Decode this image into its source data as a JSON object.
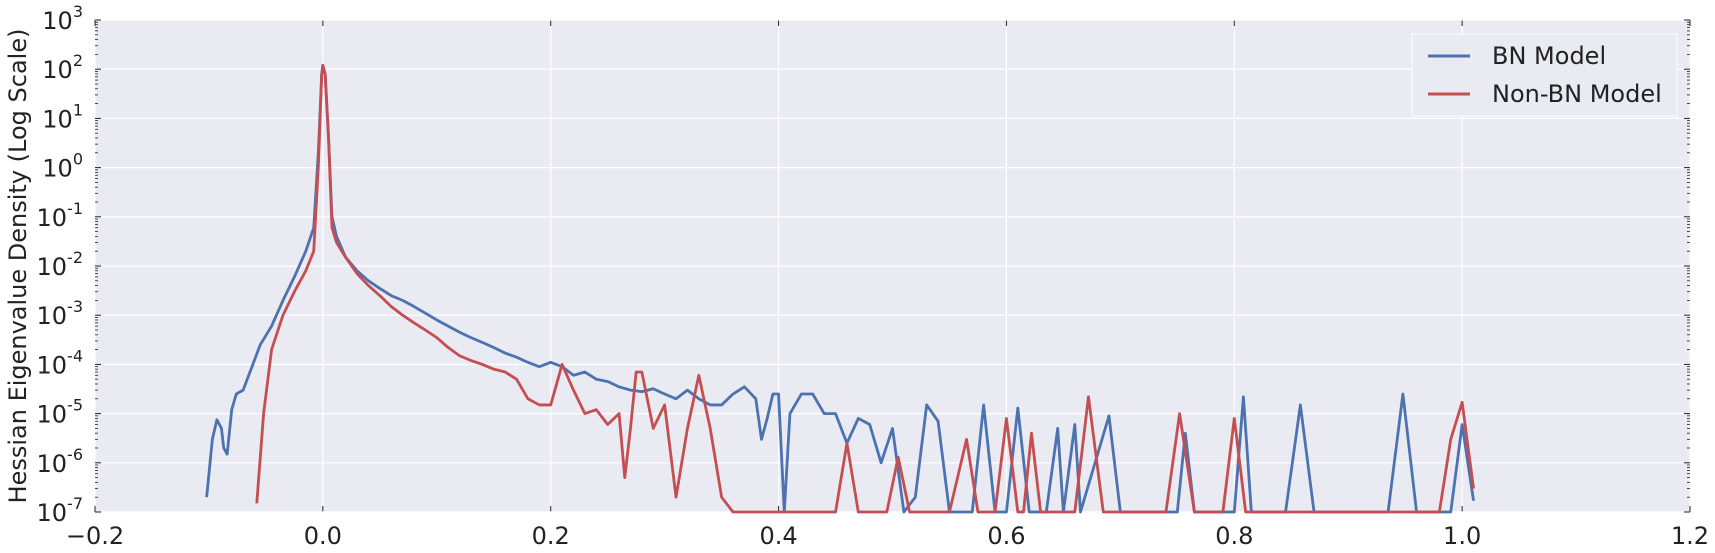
{
  "chart_data": {
    "type": "line",
    "title": "",
    "xlabel": "",
    "ylabel": "Hessian Eigenvalue Density (Log Scale)",
    "yscale": "log",
    "xlim": [
      -0.2,
      1.2
    ],
    "ylim": [
      1e-07,
      1000
    ],
    "grid": true,
    "legend_position": "top-right",
    "x_ticks": [
      "−0.2",
      "0.0",
      "0.2",
      "0.4",
      "0.6",
      "0.8",
      "1.0",
      "1.2"
    ],
    "y_ticks": [
      {
        "base": "10",
        "exp": "-7"
      },
      {
        "base": "10",
        "exp": "-6"
      },
      {
        "base": "10",
        "exp": "-5"
      },
      {
        "base": "10",
        "exp": "-4"
      },
      {
        "base": "10",
        "exp": "-3"
      },
      {
        "base": "10",
        "exp": "-2"
      },
      {
        "base": "10",
        "exp": "-1"
      },
      {
        "base": "10",
        "exp": "0"
      },
      {
        "base": "10",
        "exp": "1"
      },
      {
        "base": "10",
        "exp": "2"
      },
      {
        "base": "10",
        "exp": "3"
      }
    ],
    "series": [
      {
        "name": "BN Model",
        "color": "#4c72b0",
        "points": [
          [
            -0.102,
            2e-07
          ],
          [
            -0.097,
            3e-06
          ],
          [
            -0.093,
            7.5e-06
          ],
          [
            -0.089,
            5e-06
          ],
          [
            -0.087,
            2e-06
          ],
          [
            -0.084,
            1.5e-06
          ],
          [
            -0.08,
            1.2e-05
          ],
          [
            -0.076,
            2.5e-05
          ],
          [
            -0.07,
            3e-05
          ],
          [
            -0.063,
            8e-05
          ],
          [
            -0.055,
            0.00025
          ],
          [
            -0.045,
            0.0006
          ],
          [
            -0.035,
            0.002
          ],
          [
            -0.025,
            0.006
          ],
          [
            -0.015,
            0.02
          ],
          [
            -0.008,
            0.06
          ],
          [
            -0.004,
            2
          ],
          [
            -0.001,
            80
          ],
          [
            0.0,
            120
          ],
          [
            0.002,
            80
          ],
          [
            0.005,
            4
          ],
          [
            0.008,
            0.1
          ],
          [
            0.012,
            0.04
          ],
          [
            0.02,
            0.015
          ],
          [
            0.03,
            0.008
          ],
          [
            0.04,
            0.005
          ],
          [
            0.05,
            0.0035
          ],
          [
            0.06,
            0.0025
          ],
          [
            0.07,
            0.002
          ],
          [
            0.08,
            0.0015
          ],
          [
            0.09,
            0.0011
          ],
          [
            0.1,
            0.0008
          ],
          [
            0.11,
            0.0006
          ],
          [
            0.12,
            0.00045
          ],
          [
            0.13,
            0.00035
          ],
          [
            0.14,
            0.00028
          ],
          [
            0.15,
            0.00022
          ],
          [
            0.16,
            0.00017
          ],
          [
            0.17,
            0.00014
          ],
          [
            0.18,
            0.00011
          ],
          [
            0.19,
            9e-05
          ],
          [
            0.2,
            0.00011
          ],
          [
            0.21,
            9e-05
          ],
          [
            0.22,
            6e-05
          ],
          [
            0.23,
            7e-05
          ],
          [
            0.24,
            5e-05
          ],
          [
            0.25,
            4.5e-05
          ],
          [
            0.26,
            3.5e-05
          ],
          [
            0.27,
            3e-05
          ],
          [
            0.28,
            2.8e-05
          ],
          [
            0.29,
            3.2e-05
          ],
          [
            0.3,
            2.5e-05
          ],
          [
            0.31,
            2e-05
          ],
          [
            0.32,
            3e-05
          ],
          [
            0.33,
            2e-05
          ],
          [
            0.34,
            1.5e-05
          ],
          [
            0.35,
            1.5e-05
          ],
          [
            0.36,
            2.5e-05
          ],
          [
            0.37,
            3.5e-05
          ],
          [
            0.38,
            2e-05
          ],
          [
            0.385,
            3e-06
          ],
          [
            0.39,
            8e-06
          ],
          [
            0.395,
            2.5e-05
          ],
          [
            0.4,
            2.5e-05
          ],
          [
            0.405,
            1e-07
          ],
          [
            0.41,
            1e-05
          ],
          [
            0.42,
            2.5e-05
          ],
          [
            0.43,
            2.5e-05
          ],
          [
            0.44,
            1e-05
          ],
          [
            0.45,
            1e-05
          ],
          [
            0.46,
            2.5e-06
          ],
          [
            0.47,
            8e-06
          ],
          [
            0.48,
            6e-06
          ],
          [
            0.49,
            1e-06
          ],
          [
            0.5,
            5e-06
          ],
          [
            0.51,
            1e-07
          ],
          [
            0.52,
            2e-07
          ],
          [
            0.53,
            1.5e-05
          ],
          [
            0.54,
            7e-06
          ],
          [
            0.55,
            1e-07
          ],
          [
            0.57,
            1e-07
          ],
          [
            0.58,
            1.5e-05
          ],
          [
            0.59,
            1e-07
          ],
          [
            0.6,
            1e-07
          ],
          [
            0.61,
            1.3e-05
          ],
          [
            0.62,
            1e-07
          ],
          [
            0.635,
            1e-07
          ],
          [
            0.645,
            5e-06
          ],
          [
            0.65,
            1e-07
          ],
          [
            0.66,
            6e-06
          ],
          [
            0.665,
            1e-07
          ],
          [
            0.69,
            9e-06
          ],
          [
            0.7,
            1e-07
          ],
          [
            0.75,
            1e-07
          ],
          [
            0.757,
            4e-06
          ],
          [
            0.765,
            1e-07
          ],
          [
            0.8,
            1e-07
          ],
          [
            0.808,
            2.2e-05
          ],
          [
            0.815,
            1e-07
          ],
          [
            0.845,
            1e-07
          ],
          [
            0.858,
            1.5e-05
          ],
          [
            0.87,
            1e-07
          ],
          [
            0.935,
            1e-07
          ],
          [
            0.948,
            2.5e-05
          ],
          [
            0.96,
            1e-07
          ],
          [
            0.99,
            1e-07
          ],
          [
            1.0,
            6e-06
          ],
          [
            1.01,
            1.7e-07
          ]
        ]
      },
      {
        "name": "Non-BN Model",
        "color": "#c44e52",
        "points": [
          [
            -0.058,
            1.5e-07
          ],
          [
            -0.052,
            1e-05
          ],
          [
            -0.045,
            0.0002
          ],
          [
            -0.035,
            0.001
          ],
          [
            -0.025,
            0.003
          ],
          [
            -0.015,
            0.008
          ],
          [
            -0.008,
            0.02
          ],
          [
            -0.004,
            1
          ],
          [
            -0.001,
            80
          ],
          [
            0.0,
            120
          ],
          [
            0.002,
            80
          ],
          [
            0.005,
            4
          ],
          [
            0.008,
            0.06
          ],
          [
            0.012,
            0.03
          ],
          [
            0.02,
            0.015
          ],
          [
            0.03,
            0.007
          ],
          [
            0.04,
            0.004
          ],
          [
            0.05,
            0.0025
          ],
          [
            0.06,
            0.0015
          ],
          [
            0.07,
            0.001
          ],
          [
            0.08,
            0.0007
          ],
          [
            0.09,
            0.0005
          ],
          [
            0.1,
            0.00035
          ],
          [
            0.11,
            0.00022
          ],
          [
            0.12,
            0.00015
          ],
          [
            0.13,
            0.00012
          ],
          [
            0.14,
            0.0001
          ],
          [
            0.15,
            8e-05
          ],
          [
            0.16,
            7e-05
          ],
          [
            0.17,
            5e-05
          ],
          [
            0.18,
            2e-05
          ],
          [
            0.19,
            1.5e-05
          ],
          [
            0.2,
            1.5e-05
          ],
          [
            0.21,
            0.0001
          ],
          [
            0.22,
            3e-05
          ],
          [
            0.23,
            1e-05
          ],
          [
            0.24,
            1.2e-05
          ],
          [
            0.25,
            6e-06
          ],
          [
            0.26,
            1e-05
          ],
          [
            0.265,
            5e-07
          ],
          [
            0.27,
            5e-06
          ],
          [
            0.275,
            7e-05
          ],
          [
            0.28,
            7e-05
          ],
          [
            0.29,
            5e-06
          ],
          [
            0.3,
            1.5e-05
          ],
          [
            0.31,
            2e-07
          ],
          [
            0.32,
            5e-06
          ],
          [
            0.33,
            6e-05
          ],
          [
            0.34,
            5e-06
          ],
          [
            0.35,
            2e-07
          ],
          [
            0.36,
            1e-07
          ],
          [
            0.37,
            1e-07
          ],
          [
            0.38,
            1e-07
          ],
          [
            0.39,
            1e-07
          ],
          [
            0.4,
            1e-07
          ],
          [
            0.45,
            1e-07
          ],
          [
            0.46,
            2.5e-06
          ],
          [
            0.47,
            1e-07
          ],
          [
            0.495,
            1e-07
          ],
          [
            0.505,
            1.3e-06
          ],
          [
            0.515,
            1e-07
          ],
          [
            0.55,
            1e-07
          ],
          [
            0.565,
            3e-06
          ],
          [
            0.575,
            1e-07
          ],
          [
            0.59,
            1e-07
          ],
          [
            0.6,
            8e-06
          ],
          [
            0.61,
            1e-07
          ],
          [
            0.615,
            1e-07
          ],
          [
            0.622,
            4e-06
          ],
          [
            0.63,
            1e-07
          ],
          [
            0.66,
            1e-07
          ],
          [
            0.672,
            2.2e-05
          ],
          [
            0.685,
            1e-07
          ],
          [
            0.74,
            1e-07
          ],
          [
            0.752,
            1e-05
          ],
          [
            0.765,
            1e-07
          ],
          [
            0.79,
            1e-07
          ],
          [
            0.8,
            8e-06
          ],
          [
            0.81,
            1e-07
          ],
          [
            0.98,
            1e-07
          ],
          [
            0.99,
            3e-06
          ],
          [
            1.0,
            1.7e-05
          ],
          [
            1.01,
            3e-07
          ]
        ]
      }
    ]
  }
}
